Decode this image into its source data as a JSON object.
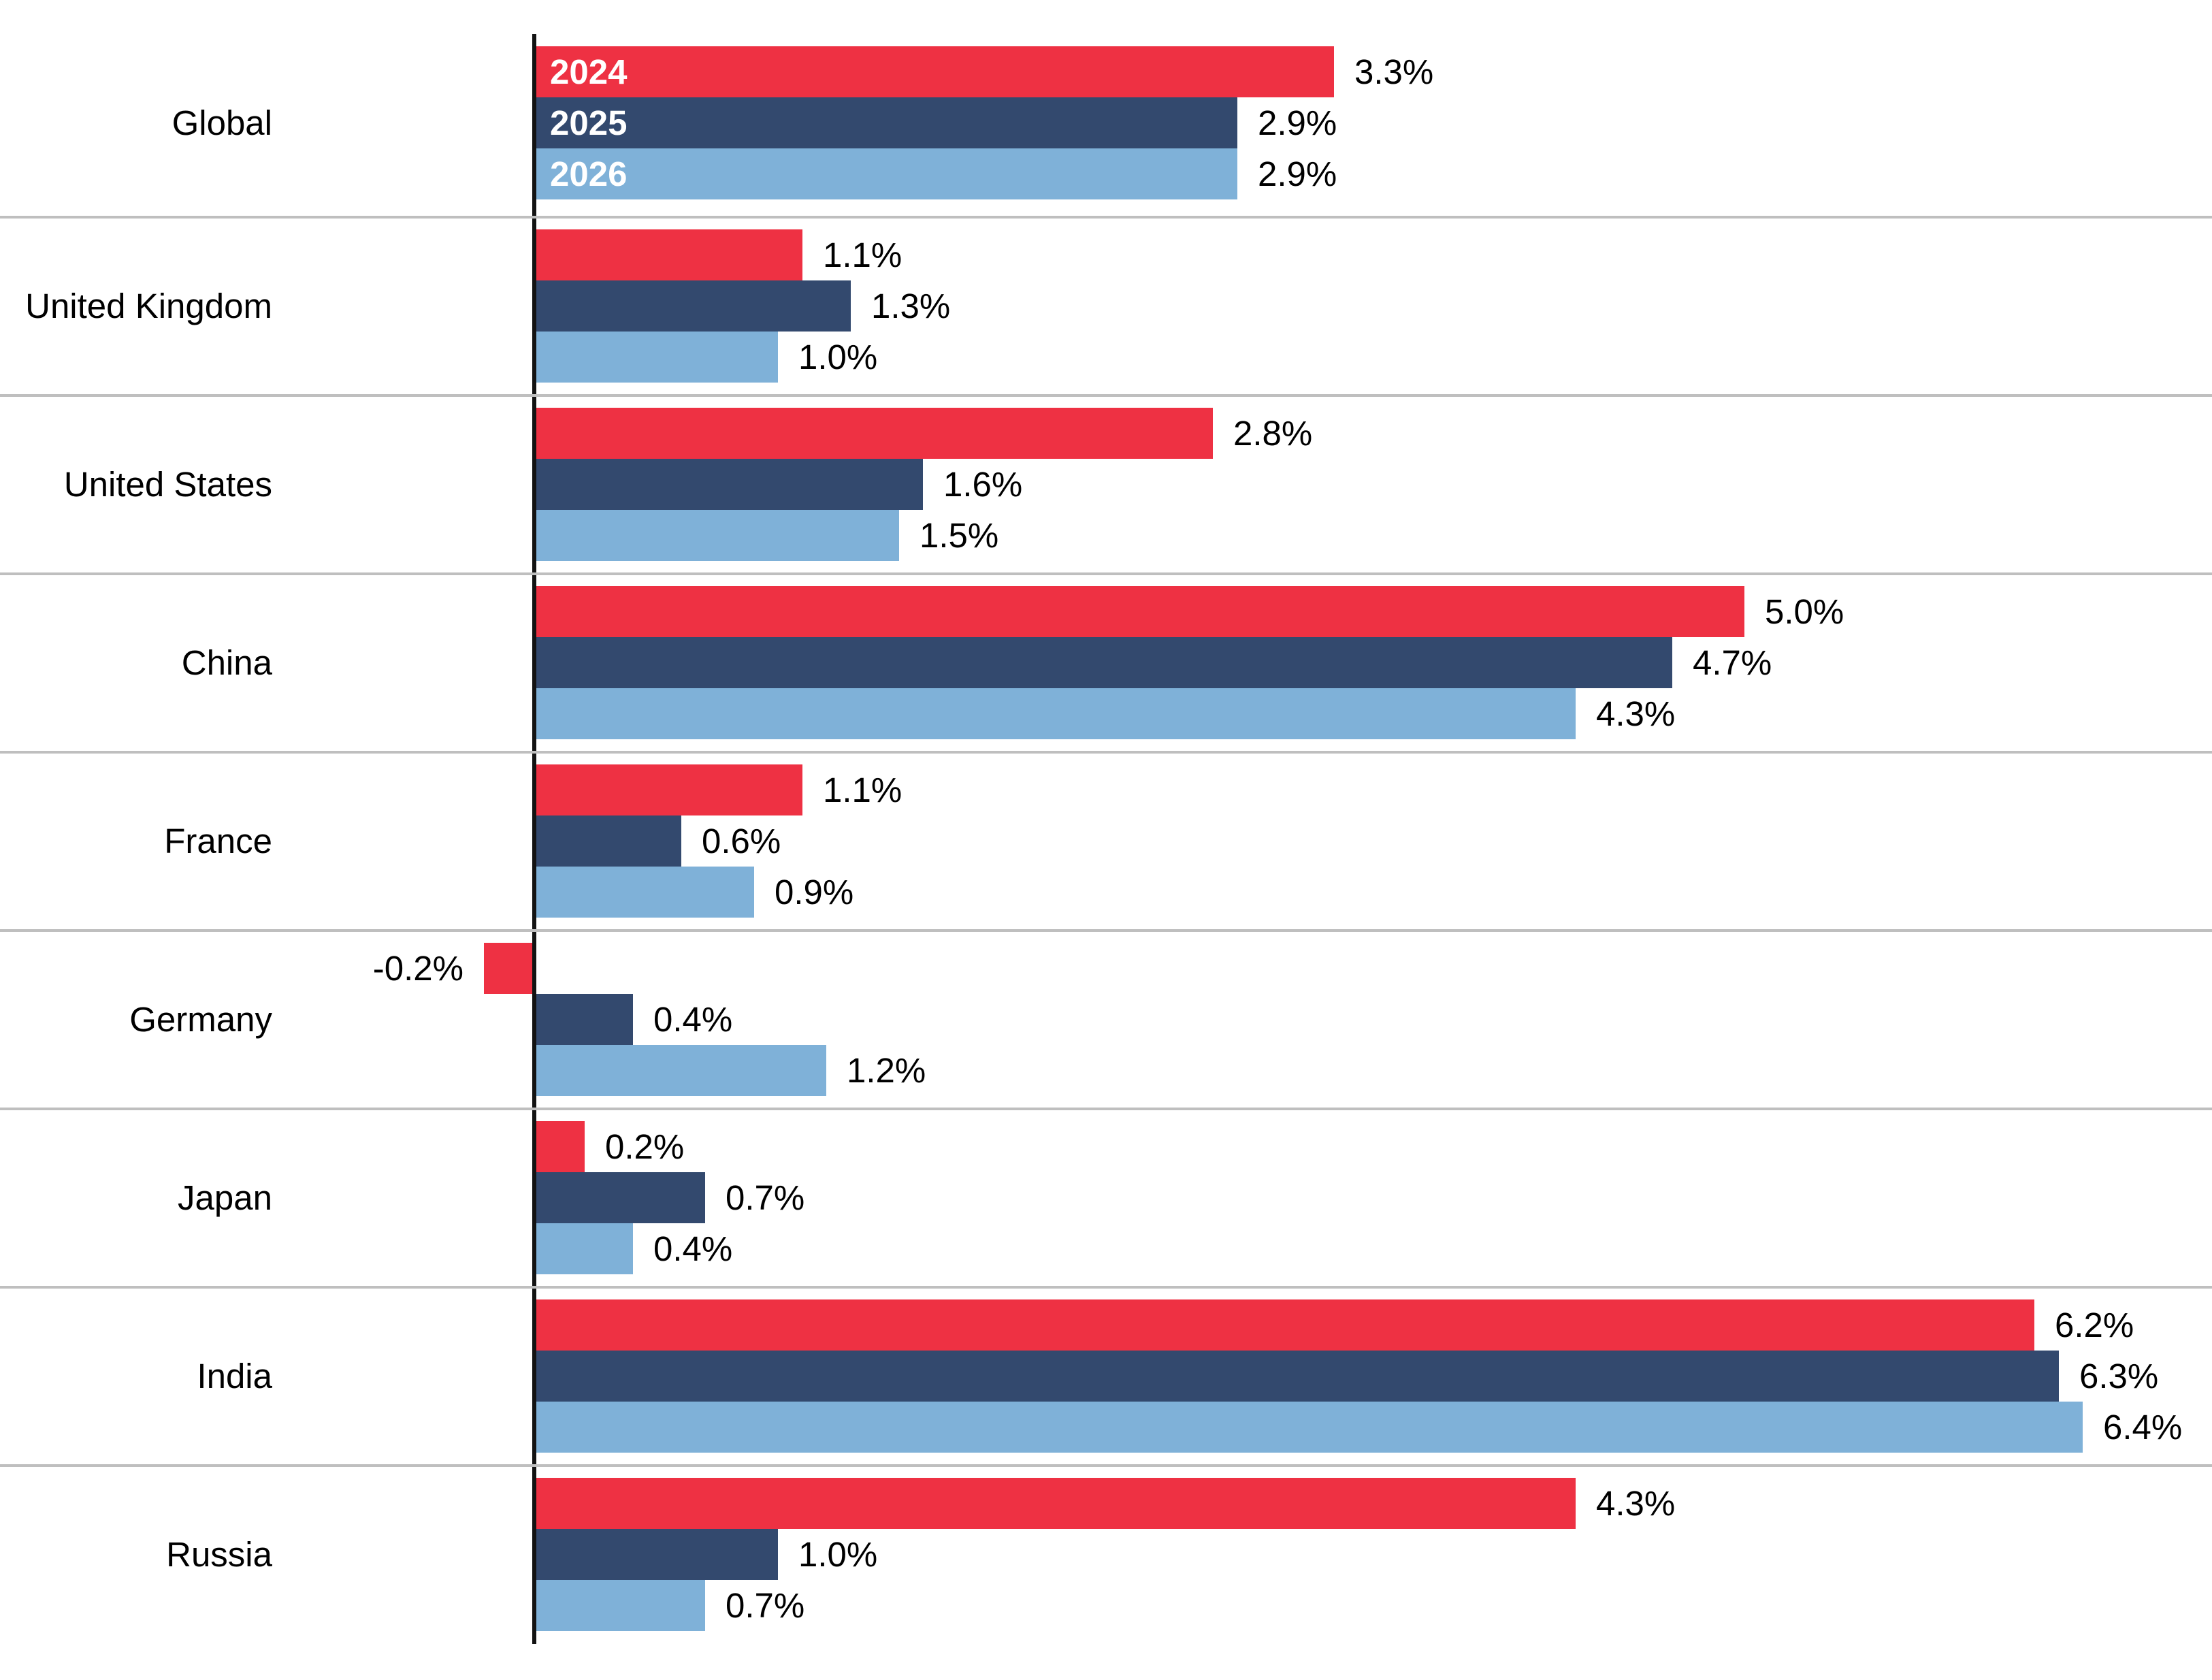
{
  "chart_data": {
    "type": "bar",
    "orientation": "horizontal",
    "unit": "%",
    "categories": [
      "Global",
      "United Kingdom",
      "United States",
      "China",
      "France",
      "Germany",
      "Japan",
      "India",
      "Russia"
    ],
    "legend": {
      "position": "inside-first-group-bars",
      "entries": [
        "2024",
        "2025",
        "2026"
      ]
    },
    "series": [
      {
        "name": "2024",
        "color": "#EE3143",
        "values": [
          3.3,
          1.1,
          2.8,
          5.0,
          1.1,
          -0.2,
          0.2,
          6.2,
          4.3
        ]
      },
      {
        "name": "2025",
        "color": "#33496E",
        "values": [
          2.9,
          1.3,
          1.6,
          4.7,
          0.6,
          0.4,
          0.7,
          6.3,
          1.0
        ]
      },
      {
        "name": "2026",
        "color": "#7FB1D8",
        "values": [
          2.9,
          1.0,
          1.5,
          4.3,
          0.9,
          1.2,
          0.4,
          6.4,
          0.7
        ]
      }
    ],
    "data_labels": [
      [
        "3.3%",
        "2.9%",
        "2.9%"
      ],
      [
        "1.1%",
        "1.3%",
        "1.0%"
      ],
      [
        "2.8%",
        "1.6%",
        "1.5%"
      ],
      [
        "5.0%",
        "4.7%",
        "4.3%"
      ],
      [
        "1.1%",
        "0.6%",
        "0.9%"
      ],
      [
        "-0.2%",
        "0.4%",
        "1.2%"
      ],
      [
        "0.2%",
        "0.7%",
        "0.4%"
      ],
      [
        "6.2%",
        "6.3%",
        "6.4%"
      ],
      [
        "4.3%",
        "1.0%",
        "0.7%"
      ]
    ],
    "axis": {
      "zero_line": true,
      "gridlines": "between-categories",
      "xlim": [
        -0.5,
        7.0
      ]
    },
    "colors": {
      "axis": "#131313",
      "gridline": "#BFBFBF",
      "label_text": "#000000",
      "value_text": "#000000",
      "legend_text_inside_bars": "#FFFFFF",
      "background": "#FFFFFF"
    }
  }
}
